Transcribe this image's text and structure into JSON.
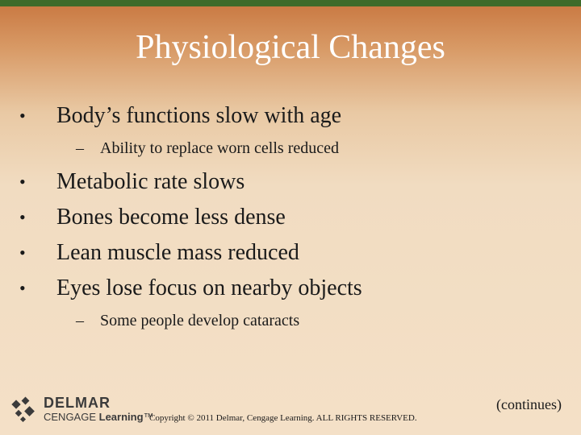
{
  "slide": {
    "title": "Physiological Changes",
    "items": [
      {
        "text": "Body’s functions slow with age",
        "sub": [
          "Ability to replace worn cells reduced"
        ]
      },
      {
        "text": "Metabolic rate slows",
        "sub": []
      },
      {
        "text": "Bones become less dense",
        "sub": []
      },
      {
        "text": "Lean muscle mass reduced",
        "sub": []
      },
      {
        "text": "Eyes lose focus on nearby objects",
        "sub": [
          "Some people develop cataracts"
        ]
      }
    ],
    "bullet_char": "•",
    "dash_char": "–"
  },
  "footer": {
    "logo_line1": "DELMAR",
    "logo_line2_part1": "CENGAGE ",
    "logo_line2_part2": "Learning",
    "logo_tm": "™",
    "copyright": "Copyright © 2011 Delmar, Cengage Learning. ALL RIGHTS RESERVED.",
    "continues": "(continues)"
  },
  "colors": {
    "top_band": "#3d6b2a",
    "title_text": "#ffffff",
    "gradient_top": "#c8763f",
    "gradient_bottom": "#f4e0c7",
    "body_text": "#1a1a1a"
  }
}
